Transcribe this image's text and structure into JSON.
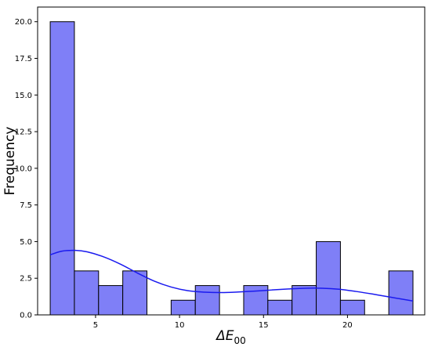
{
  "chart_data": {
    "type": "bar",
    "subtype": "histogram-with-kde",
    "title": "",
    "xlabel_main": "ΔE",
    "xlabel_sub": "00",
    "ylabel": "Frequency",
    "xlim": [
      1.55,
      24.6
    ],
    "ylim": [
      0,
      21
    ],
    "x_ticks": [
      5,
      10,
      15,
      20
    ],
    "y_ticks": [
      0.0,
      2.5,
      5.0,
      7.5,
      10.0,
      12.5,
      15.0,
      17.5,
      20.0
    ],
    "bin_edges": [
      2.3,
      3.74,
      5.18,
      6.62,
      8.06,
      9.5,
      10.94,
      12.38,
      13.82,
      15.26,
      16.7,
      18.14,
      19.58,
      21.02,
      22.46,
      23.9
    ],
    "counts": [
      20,
      3,
      2,
      3,
      0,
      1,
      2,
      0,
      2,
      1,
      2,
      5,
      1,
      0,
      3
    ],
    "bar_color": "#7f7ff7",
    "bar_edge_color": "#000000",
    "kde_color": "#1a1aef",
    "kde": {
      "x": [
        2.3,
        3.0,
        3.8,
        4.5,
        5.5,
        6.5,
        7.5,
        8.5,
        9.5,
        10.5,
        11.5,
        12.5,
        13.5,
        14.5,
        15.5,
        16.5,
        17.5,
        18.5,
        19.5,
        20.5,
        21.5,
        22.5,
        23.9
      ],
      "y": [
        4.1,
        4.35,
        4.4,
        4.3,
        3.95,
        3.45,
        2.85,
        2.3,
        1.9,
        1.65,
        1.55,
        1.52,
        1.56,
        1.62,
        1.7,
        1.77,
        1.82,
        1.82,
        1.75,
        1.6,
        1.42,
        1.22,
        0.95
      ]
    },
    "grid": false,
    "legend": "none"
  }
}
